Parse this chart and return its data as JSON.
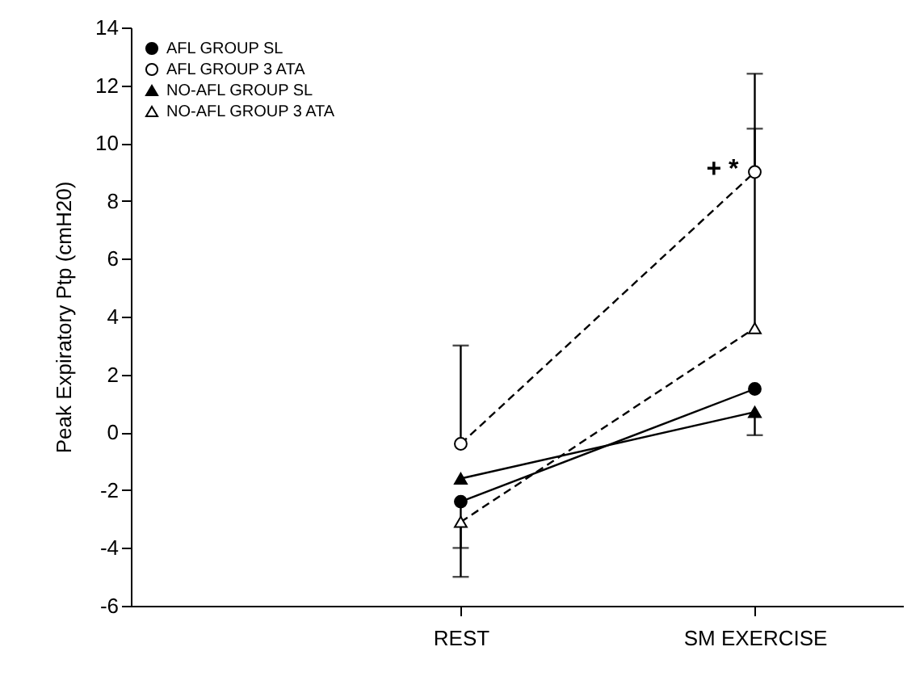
{
  "chart_data": {
    "type": "line",
    "ylabel": "Peak Expiratory Ptp (cmH20)",
    "categories": [
      "REST",
      "SM  EXERCISE"
    ],
    "ylim": [
      -6,
      14
    ],
    "yticks": [
      -6,
      -4,
      -2,
      0,
      2,
      4,
      6,
      8,
      10,
      12,
      14
    ],
    "grid": false,
    "legend": "top left",
    "series": [
      {
        "name": "AFL GROUP SL",
        "color": "#000000",
        "marker": "circle",
        "line_style": "solid",
        "values": [
          -2.4,
          1.5
        ],
        "errors": [
          [
            -4.0,
            -2.4
          ],
          null
        ]
      },
      {
        "name": "AFL GROUP 3 ATA",
        "color": "#000000",
        "marker": "circle",
        "line_style": "dashed",
        "values": [
          -0.4,
          9.0
        ],
        "errors": [
          [
            -0.4,
            3.0
          ],
          [
            9.0,
            12.4
          ]
        ]
      },
      {
        "name": "NO-AFL GROUP SL",
        "color": "#000000",
        "marker": "triangle",
        "line_style": "solid",
        "values": [
          -1.6,
          0.7
        ],
        "errors": [
          null,
          [
            -0.1,
            0.7
          ]
        ]
      },
      {
        "name": "NO-AFL GROUP 3 ATA",
        "color": "#000000",
        "marker": "triangle",
        "line_style": "dashed",
        "values": [
          -3.1,
          3.6
        ],
        "errors": [
          [
            -5.0,
            -3.1
          ],
          [
            3.6,
            10.5
          ]
        ]
      }
    ],
    "annotations": [
      {
        "text": "+ *",
        "x": "SM  EXERCISE",
        "y": 9.0
      }
    ]
  }
}
